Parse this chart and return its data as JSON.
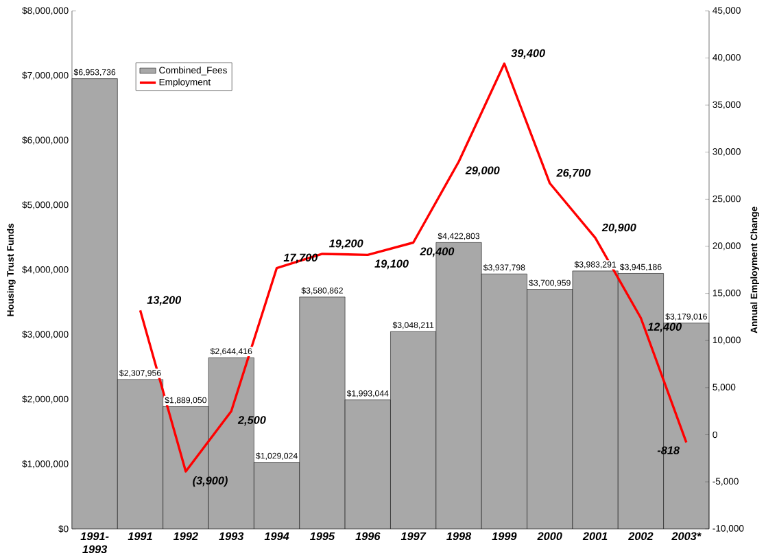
{
  "chart_data": {
    "type": "bar",
    "ylabel": "Housing Trust Funds",
    "y2label": "Annual Employment Change",
    "legend": "top left",
    "categories": [
      "1991-1993",
      "1991",
      "1992",
      "1993",
      "1994",
      "1995",
      "1996",
      "1997",
      "1998",
      "1999",
      "2000",
      "2001",
      "2002",
      "2003*"
    ],
    "series": [
      {
        "name": "Combined_Fees",
        "type": "bar",
        "color": "#a8a8a8",
        "values": [
          6953736,
          2307956,
          1889050,
          2644416,
          1029024,
          3580862,
          1993044,
          3048211,
          4422803,
          3937798,
          3700959,
          3983291,
          3945186,
          3179016
        ],
        "value_labels": [
          "$6,953,736",
          "$2,307,956",
          "$1,889,050",
          "$2,644,416",
          "$1,029,024",
          "$3,580,862",
          "$1,993,044",
          "$3,048,211",
          "$4,422,803",
          "$3,937,798",
          "$3,700,959",
          "$3,983,291",
          "$3,945,186",
          "$3,179,016"
        ]
      },
      {
        "name": "Employment",
        "type": "line",
        "axis": "y2",
        "color": "#ff0000",
        "values": [
          null,
          13200,
          -3900,
          2500,
          17700,
          19200,
          19100,
          20400,
          29000,
          39400,
          26700,
          20900,
          12400,
          -818
        ],
        "value_labels": [
          null,
          "13,200",
          "(3,900)",
          "2,500",
          "17,700",
          "19,200",
          "19,100",
          "20,400",
          "29,000",
          "39,400",
          "26,700",
          "20,900",
          "12,400",
          "-818"
        ]
      }
    ],
    "ylim": [
      0,
      8000000
    ],
    "yticks": [
      {
        "value": 0,
        "label": "$0"
      },
      {
        "value": 1000000,
        "label": "$1,000,000"
      },
      {
        "value": 2000000,
        "label": "$2,000,000"
      },
      {
        "value": 3000000,
        "label": "$3,000,000"
      },
      {
        "value": 4000000,
        "label": "$4,000,000"
      },
      {
        "value": 5000000,
        "label": "$5,000,000"
      },
      {
        "value": 6000000,
        "label": "$6,000,000"
      },
      {
        "value": 7000000,
        "label": "$7,000,000"
      },
      {
        "value": 8000000,
        "label": "$8,000,000"
      }
    ],
    "y2lim": [
      -10000,
      45000
    ],
    "y2ticks": [
      {
        "value": -10000,
        "label": "-10,000"
      },
      {
        "value": -5000,
        "label": "-5,000"
      },
      {
        "value": 0,
        "label": "0"
      },
      {
        "value": 5000,
        "label": "5,000"
      },
      {
        "value": 10000,
        "label": "10,000"
      },
      {
        "value": 15000,
        "label": "15,000"
      },
      {
        "value": 20000,
        "label": "20,000"
      },
      {
        "value": 25000,
        "label": "25,000"
      },
      {
        "value": 30000,
        "label": "30,000"
      },
      {
        "value": 35000,
        "label": "35,000"
      },
      {
        "value": 40000,
        "label": "40,000"
      },
      {
        "value": 45000,
        "label": "45,000"
      }
    ]
  }
}
